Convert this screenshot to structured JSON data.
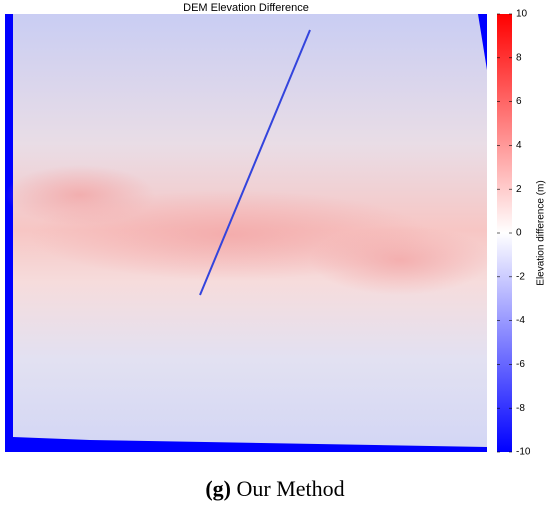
{
  "chart_data": {
    "type": "heatmap",
    "title": "DEM Elevation Difference",
    "colorbar_label": "Elevation difference (m)",
    "clim": [
      -10,
      10
    ],
    "colorbar_ticks": [
      -10,
      -8,
      -6,
      -4,
      -2,
      0,
      2,
      4,
      6,
      8,
      10
    ],
    "colormap": [
      "#0000ff",
      "#ffffff",
      "#ff0000"
    ]
  },
  "caption": {
    "label": "(g)",
    "text": "Our Method"
  }
}
